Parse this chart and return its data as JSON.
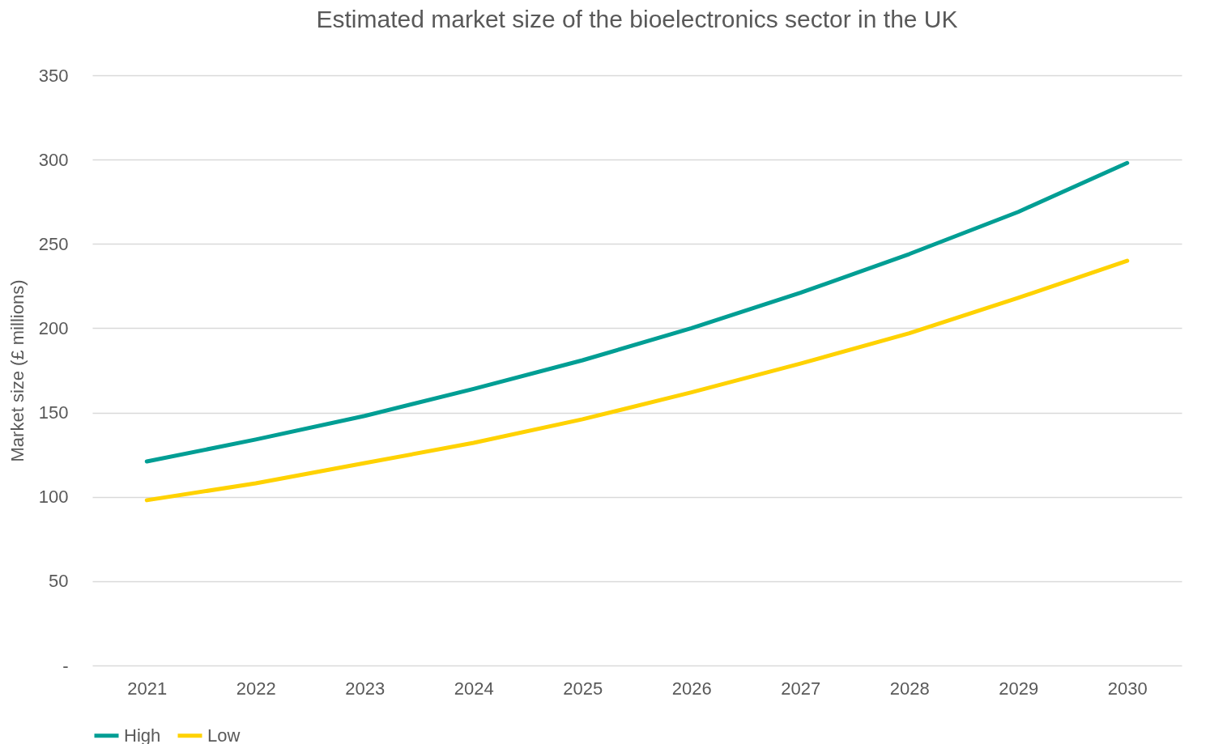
{
  "chart_data": {
    "type": "line",
    "title": "Estimated market size of the bioelectronics sector in the UK",
    "ylabel": "Market size (£ millions)",
    "categories": [
      "2021",
      "2022",
      "2023",
      "2024",
      "2025",
      "2026",
      "2027",
      "2028",
      "2029",
      "2030"
    ],
    "series": [
      {
        "name": "High",
        "color": "#009e94",
        "values": [
          121,
          134,
          148,
          164,
          181,
          200,
          221,
          244,
          269,
          298
        ]
      },
      {
        "name": "Low",
        "color": "#ffd200",
        "values": [
          98,
          108,
          120,
          132,
          146,
          162,
          179,
          197,
          218,
          240
        ]
      }
    ],
    "ylim": [
      0,
      350
    ],
    "yticks": [
      {
        "value": 0,
        "label": "-"
      },
      50,
      100,
      150,
      200,
      250,
      300,
      350
    ],
    "grid": "y",
    "legend": "bottom",
    "marker": "none",
    "line_style": "solid"
  }
}
